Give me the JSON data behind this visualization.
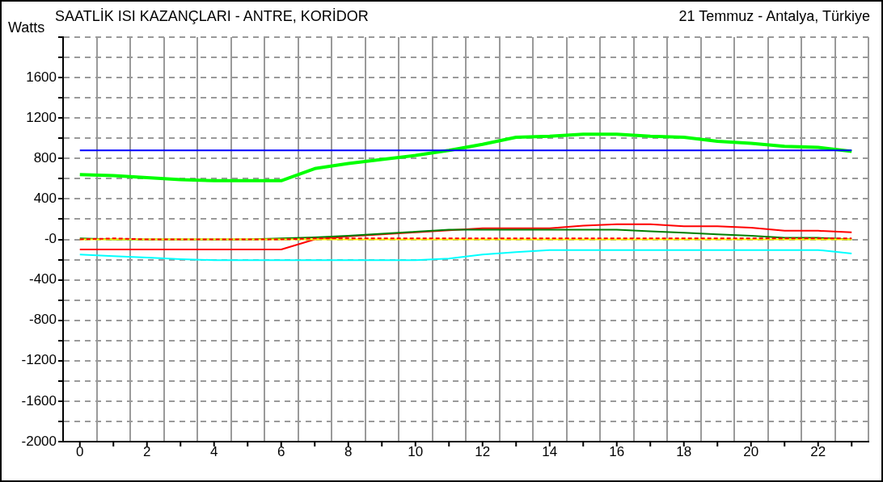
{
  "chart_data": {
    "type": "line",
    "title": "SAATLİK ISI KAZANÇLARI - ANTRE, KORİDOR",
    "subtitle": "21 Temmuz - Antalya, Türkiye",
    "ylabel": "Watts",
    "x": [
      0,
      1,
      2,
      3,
      4,
      5,
      6,
      7,
      8,
      9,
      10,
      11,
      12,
      13,
      14,
      15,
      16,
      17,
      18,
      19,
      20,
      21,
      22,
      23
    ],
    "series": [
      {
        "color": "#00ffff",
        "values": [
          -150,
          -165,
          -180,
          -195,
          -205,
          -205,
          -205,
          -205,
          -205,
          -205,
          -205,
          -190,
          -150,
          -125,
          -105,
          -105,
          -105,
          -105,
          -105,
          -105,
          -105,
          -105,
          -105,
          -140
        ]
      },
      {
        "color": "#ffff00",
        "values": [
          0,
          0,
          0,
          0,
          0,
          0,
          0,
          0,
          0,
          0,
          0,
          0,
          0,
          0,
          0,
          0,
          0,
          0,
          0,
          0,
          0,
          0,
          0,
          0
        ]
      },
      {
        "color": "#ff0000",
        "line_style": "dashed",
        "values": [
          0,
          10,
          0,
          0,
          0,
          0,
          0,
          10,
          10,
          10,
          10,
          10,
          10,
          10,
          10,
          10,
          10,
          10,
          10,
          10,
          10,
          10,
          10,
          10
        ]
      },
      {
        "color": "#008000",
        "values": [
          10,
          0,
          0,
          0,
          0,
          0,
          10,
          20,
          35,
          55,
          75,
          95,
          95,
          95,
          95,
          95,
          95,
          80,
          65,
          50,
          35,
          15,
          15,
          0
        ]
      },
      {
        "color": "#ff0000",
        "values": [
          -100,
          -100,
          -100,
          -100,
          -100,
          -100,
          -100,
          0,
          30,
          50,
          70,
          null,
          110,
          110,
          110,
          135,
          150,
          150,
          130,
          130,
          115,
          85,
          85,
          70
        ]
      },
      {
        "color": "#0000ff",
        "values": [
          880,
          880,
          880,
          880,
          880,
          880,
          880,
          880,
          880,
          880,
          880,
          880,
          880,
          880,
          880,
          880,
          880,
          880,
          880,
          880,
          880,
          880,
          880,
          880
        ]
      },
      {
        "color": "#00ff00",
        "values": [
          640,
          630,
          610,
          590,
          580,
          580,
          580,
          700,
          750,
          790,
          830,
          880,
          940,
          1010,
          1020,
          1040,
          1040,
          1020,
          1010,
          970,
          950,
          920,
          910,
          870
        ]
      }
    ],
    "xlim": [
      -0.5,
      23.5
    ],
    "xticks": [
      0,
      {
        "value": 1,
        "label": null
      },
      2,
      {
        "value": 3,
        "label": null
      },
      4,
      {
        "value": 5,
        "label": null
      },
      6,
      {
        "value": 7,
        "label": null
      },
      8,
      {
        "value": 9,
        "label": null
      },
      10,
      {
        "value": 11,
        "label": null
      },
      12,
      {
        "value": 13,
        "label": null
      },
      14,
      {
        "value": 15,
        "label": null
      },
      16,
      {
        "value": 17,
        "label": null
      },
      18,
      {
        "value": 19,
        "label": null
      },
      20,
      {
        "value": 21,
        "label": null
      },
      22,
      {
        "value": 23,
        "label": null
      }
    ],
    "ylim": [
      -2000,
      2000
    ],
    "yticks": [
      -2000,
      {
        "value": -1800,
        "label": null
      },
      -1600,
      {
        "value": -1400,
        "label": null
      },
      -1200,
      {
        "value": -1000,
        "label": null
      },
      -800,
      {
        "value": -600,
        "label": null
      },
      -400,
      {
        "value": -200,
        "label": null
      },
      {
        "value": 0,
        "label": "-0"
      },
      {
        "value": 200,
        "label": null
      },
      400,
      {
        "value": 600,
        "label": null
      },
      800,
      {
        "value": 1000,
        "label": null
      },
      1200,
      {
        "value": 1400,
        "label": null
      },
      1600,
      {
        "value": 1800,
        "label": null
      },
      {
        "value": 2000,
        "label": null
      }
    ],
    "grid": true,
    "legend": false,
    "marker": "none",
    "line_style": "solid"
  }
}
